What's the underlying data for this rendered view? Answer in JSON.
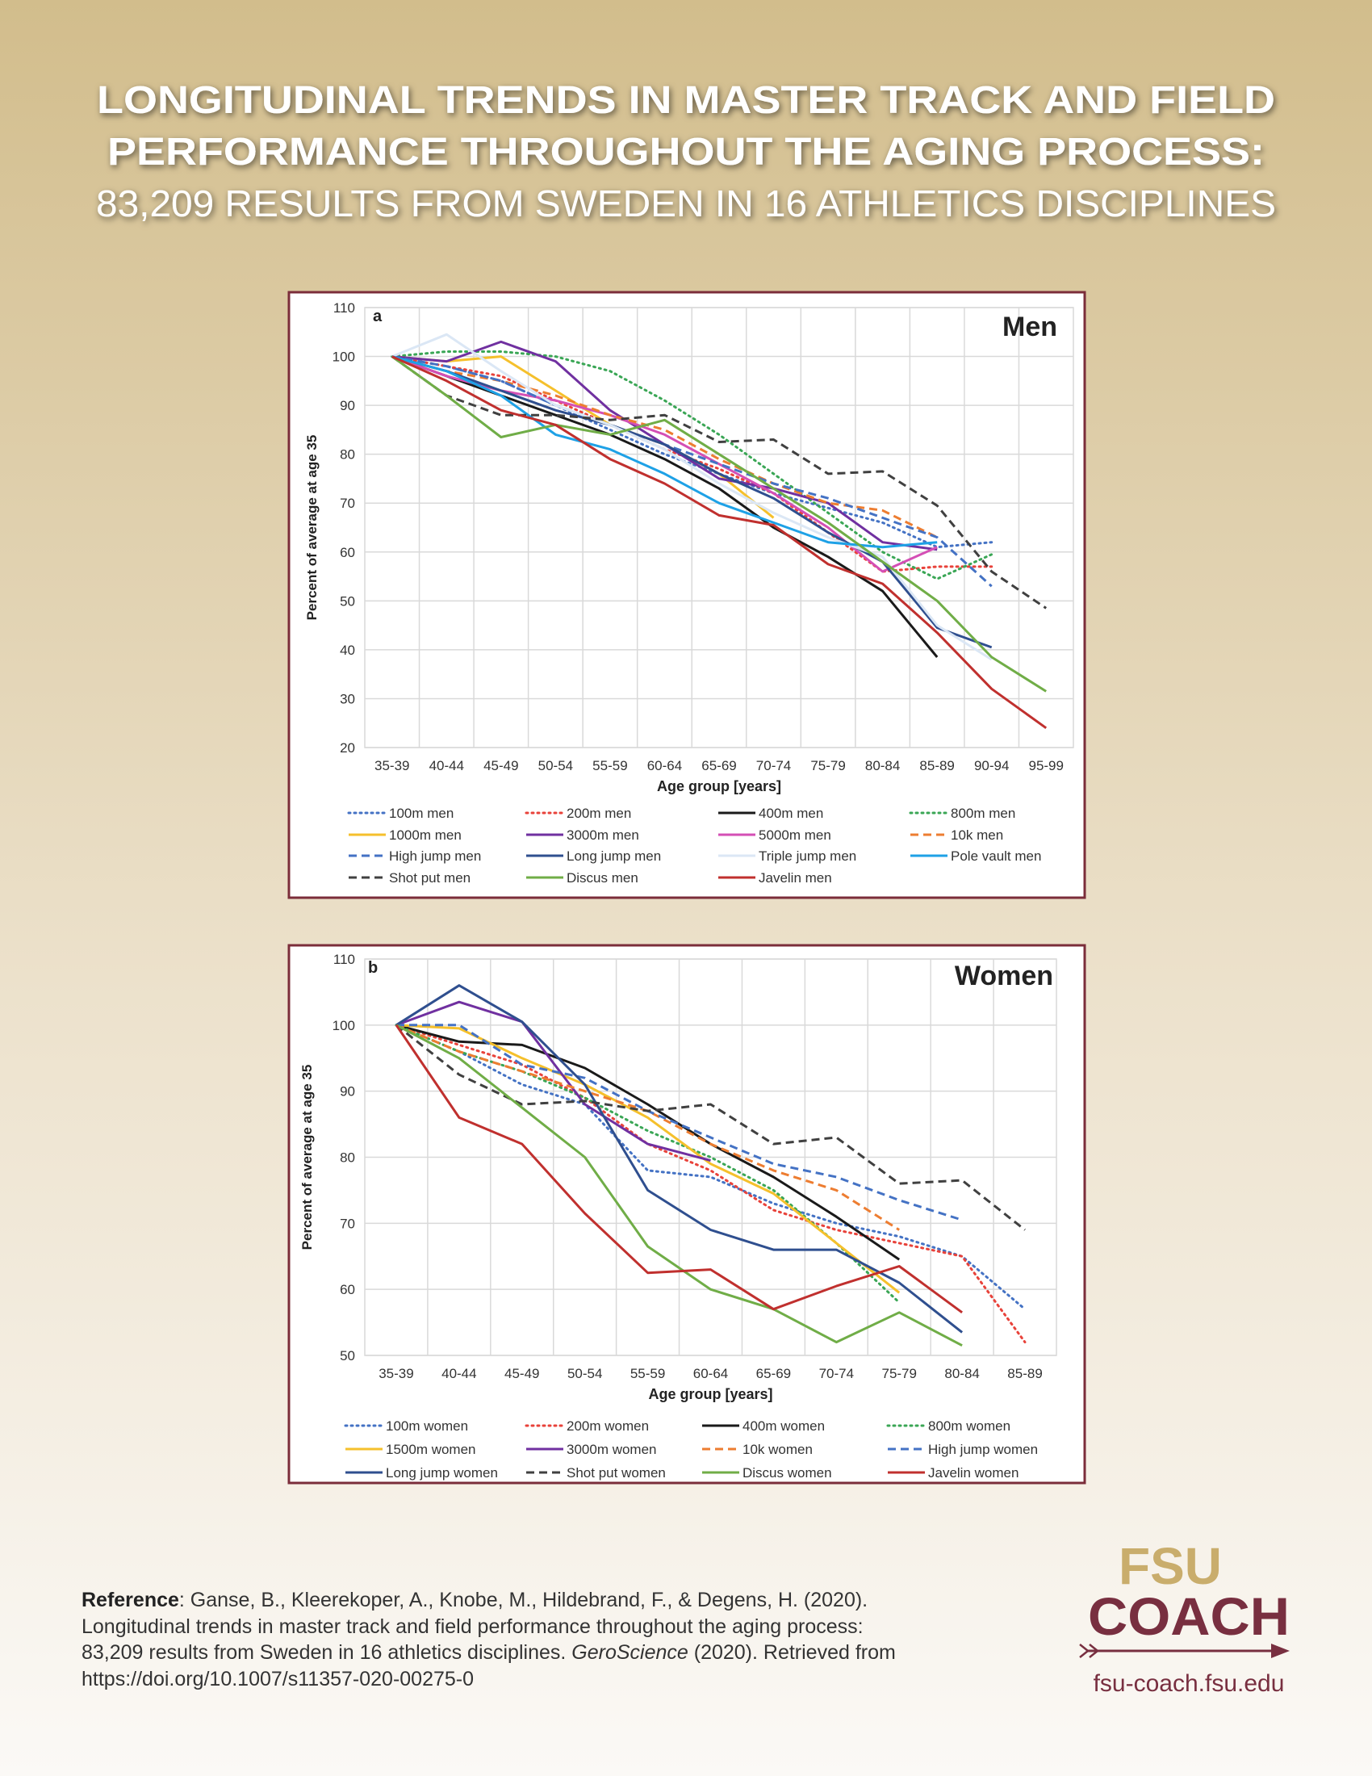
{
  "header": {
    "title_line1": "LONGITUDINAL TRENDS IN MASTER TRACK AND FIELD",
    "title_line2": "PERFORMANCE THROUGHOUT THE AGING PROCESS:",
    "subtitle": "83,209 RESULTS FROM SWEDEN IN 16 ATHLETICS DISCIPLINES"
  },
  "chart_data": [
    {
      "type": "line",
      "panel": "a",
      "title": "Men",
      "x_label": "Age group [years]",
      "y_label": "Percent of average at age 35",
      "categories": [
        "35-39",
        "40-44",
        "45-49",
        "50-54",
        "55-59",
        "60-64",
        "65-69",
        "70-74",
        "75-79",
        "80-84",
        "85-89",
        "90-94",
        "95-99"
      ],
      "ylim": [
        20,
        110
      ],
      "yticks": [
        20,
        30,
        40,
        50,
        60,
        70,
        80,
        90,
        100,
        110
      ],
      "grid": true,
      "series": [
        {
          "name": "100m men",
          "color": "#4472c4",
          "dash": "dotted",
          "values": [
            100,
            98,
            95,
            90,
            85,
            80,
            76,
            72,
            69,
            66,
            61,
            62,
            null
          ]
        },
        {
          "name": "200m men",
          "color": "#e8423a",
          "dash": "dotted",
          "values": [
            100,
            98,
            96,
            91,
            86,
            81,
            77,
            72,
            64,
            56,
            57,
            57,
            null
          ]
        },
        {
          "name": "400m men",
          "color": "#1a1a1a",
          "dash": "solid",
          "values": [
            100,
            96,
            92,
            88,
            84,
            79,
            73,
            65,
            59,
            52,
            38.5,
            null,
            null
          ]
        },
        {
          "name": "800m men",
          "color": "#3aa655",
          "dash": "dotted",
          "values": [
            100,
            101,
            101,
            100,
            97,
            91,
            84,
            76,
            68,
            60,
            54.5,
            59.5,
            null
          ]
        },
        {
          "name": "1000m men",
          "color": "#f5c02c",
          "dash": "solid",
          "values": [
            100,
            99,
            100,
            93,
            86,
            82,
            76,
            67,
            null,
            null,
            null,
            null,
            null
          ]
        },
        {
          "name": "3000m men",
          "color": "#7030a0",
          "dash": "solid",
          "values": [
            100,
            99,
            103,
            99,
            89,
            82,
            75,
            73,
            70,
            62,
            60.5,
            null,
            null
          ]
        },
        {
          "name": "5000m men",
          "color": "#d44fb5",
          "dash": "solid",
          "values": [
            100,
            96,
            93,
            91,
            88,
            84,
            78,
            72,
            65,
            56,
            61,
            null,
            null
          ]
        },
        {
          "name": "10k men",
          "color": "#ed7d31",
          "dash": "dashed",
          "values": [
            100,
            97,
            95,
            92,
            88,
            85,
            79,
            74,
            70,
            68.5,
            63,
            null,
            null
          ]
        },
        {
          "name": "High jump men",
          "color": "#4472c4",
          "dash": "dashed",
          "values": [
            100,
            98,
            95,
            90,
            86,
            82,
            78,
            74,
            71,
            67,
            63,
            53,
            null
          ]
        },
        {
          "name": "Long jump men",
          "color": "#2f4f8f",
          "dash": "solid",
          "values": [
            100,
            97,
            93,
            89,
            86,
            82,
            76,
            71,
            64,
            58,
            44.5,
            40.5,
            null
          ]
        },
        {
          "name": "Triple jump men",
          "color": "#dbe7f5",
          "dash": "solid",
          "values": [
            100,
            104.5,
            97,
            90,
            86,
            81,
            74,
            68,
            63,
            59,
            45,
            38,
            null
          ]
        },
        {
          "name": "Pole vault men",
          "color": "#1ea1e6",
          "dash": "solid",
          "values": [
            100,
            97,
            92,
            84,
            81,
            76,
            70,
            66,
            62,
            61,
            62,
            null,
            null
          ]
        },
        {
          "name": "Shot put men",
          "color": "#404040",
          "dash": "dashed",
          "values": [
            100,
            92,
            88,
            88,
            87,
            88,
            82.5,
            83,
            76,
            76.5,
            69.5,
            56,
            48.5
          ]
        },
        {
          "name": "Discus men",
          "color": "#70ad47",
          "dash": "solid",
          "values": [
            100,
            92,
            83.5,
            86,
            84,
            87,
            80,
            73,
            66,
            58,
            50,
            38.5,
            31.5
          ]
        },
        {
          "name": "Javelin men",
          "color": "#c0302e",
          "dash": "solid",
          "values": [
            100,
            95,
            89,
            86,
            79,
            74,
            67.5,
            65.5,
            57.5,
            53.5,
            43.5,
            32,
            24
          ]
        }
      ]
    },
    {
      "type": "line",
      "panel": "b",
      "title": "Women",
      "x_label": "Age group [years]",
      "y_label": "Percent of average at age 35",
      "categories": [
        "35-39",
        "40-44",
        "45-49",
        "50-54",
        "55-59",
        "60-64",
        "65-69",
        "70-74",
        "75-79",
        "80-84",
        "85-89"
      ],
      "ylim": [
        50,
        110
      ],
      "yticks": [
        50,
        60,
        70,
        80,
        90,
        100,
        110
      ],
      "grid": true,
      "series": [
        {
          "name": "100m women",
          "color": "#4472c4",
          "dash": "dotted",
          "values": [
            100,
            96,
            91,
            88,
            78,
            77,
            73,
            70,
            68,
            65,
            57
          ]
        },
        {
          "name": "200m women",
          "color": "#e8423a",
          "dash": "dotted",
          "values": [
            100,
            97,
            94,
            89,
            82,
            78,
            72,
            69,
            67,
            65,
            52
          ]
        },
        {
          "name": "400m women",
          "color": "#1a1a1a",
          "dash": "solid",
          "values": [
            100,
            97.5,
            97,
            93.5,
            88,
            82,
            77,
            71,
            64.5,
            null,
            null
          ]
        },
        {
          "name": "800m women",
          "color": "#3aa655",
          "dash": "dotted",
          "values": [
            100,
            96,
            93,
            89,
            84,
            80,
            75,
            67,
            58,
            null,
            null
          ]
        },
        {
          "name": "1500m women",
          "color": "#f5c02c",
          "dash": "solid",
          "values": [
            100,
            99.5,
            95,
            91,
            86,
            79,
            74.5,
            67,
            59.5,
            null,
            null
          ]
        },
        {
          "name": "3000m women",
          "color": "#7030a0",
          "dash": "solid",
          "values": [
            100,
            103.5,
            100.5,
            88,
            82,
            79.5,
            null,
            null,
            null,
            null,
            null
          ]
        },
        {
          "name": "10k women",
          "color": "#ed7d31",
          "dash": "dashed",
          "values": [
            100,
            96,
            93,
            90,
            87,
            82,
            78,
            75,
            69,
            null,
            null
          ]
        },
        {
          "name": "High jump women",
          "color": "#4472c4",
          "dash": "dashed",
          "values": [
            100,
            100,
            94,
            92,
            87,
            83,
            79,
            77,
            73.5,
            70.5,
            null
          ]
        },
        {
          "name": "Long jump women",
          "color": "#2f4f8f",
          "dash": "solid",
          "values": [
            100,
            106,
            100.5,
            91,
            75,
            69,
            66,
            66,
            61,
            53.5,
            null
          ]
        },
        {
          "name": "Shot put women",
          "color": "#404040",
          "dash": "dashed",
          "values": [
            100,
            92.5,
            88,
            88.5,
            87,
            88,
            82,
            83,
            76,
            76.5,
            69
          ]
        },
        {
          "name": "Discus women",
          "color": "#70ad47",
          "dash": "solid",
          "values": [
            100,
            95,
            87.5,
            80,
            66.5,
            60,
            57,
            52,
            56.5,
            51.5,
            null
          ]
        },
        {
          "name": "Javelin women",
          "color": "#c0302e",
          "dash": "solid",
          "values": [
            100,
            86,
            82,
            71.5,
            62.5,
            63,
            57,
            60.5,
            63.5,
            56.5,
            null
          ]
        }
      ]
    }
  ],
  "reference": {
    "label": "Reference",
    "line1": ": Ganse, B., Kleerekoper, A., Knobe, M., Hildebrand, F., & Degens, H. (2020).",
    "line2": "Longitudinal trends in master track and field performance throughout the aging process:",
    "line3a": "83,209 results from Sweden in 16 athletics disciplines. ",
    "journal": "GeroScience",
    "line3b": " (2020). Retrieved from",
    "line4": "https://doi.org/10.1007/s11357-020-00275-0"
  },
  "logo": {
    "top": "FSU",
    "bottom": "COACH",
    "url": "fsu-coach.fsu.edu"
  }
}
